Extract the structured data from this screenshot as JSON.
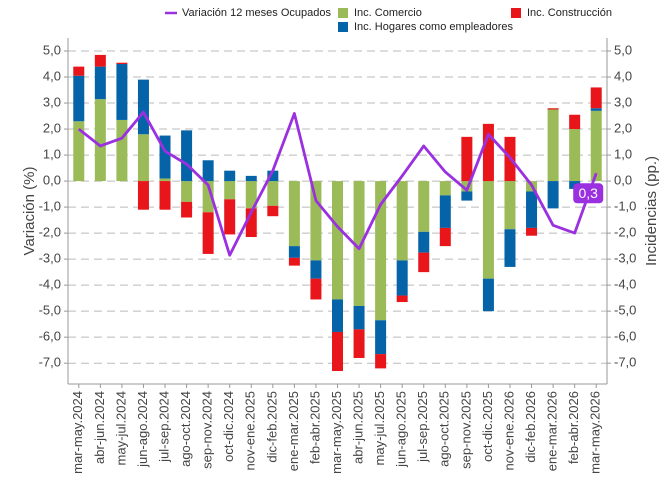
{
  "chart_data": {
    "type": "stacked-bar-line",
    "ylabel": "Variación (%)",
    "y2label": "Incidencias (pp.)",
    "categories": [
      "mar-may.2024",
      "abr-jun.2024",
      "may-jul.2024",
      "jun-ago.2024",
      "jul-sep.2024",
      "ago-oct.2024",
      "sep-nov.2024",
      "oct-dic.2024",
      "nov-ene.2025",
      "dic-feb.2025",
      "ene-mar.2025",
      "feb-abr.2025",
      "mar-may.2025",
      "abr-jun.2025",
      "may-jul.2025",
      "jun-ago.2025",
      "jul-sep.2025",
      "ago-oct.2025",
      "sep-nov.2025",
      "oct-dic.2025",
      "nov-ene.2026",
      "dic-feb.2026",
      "ene-mar.2026",
      "feb-abr.2026",
      "mar-may.2026"
    ],
    "series": [
      {
        "name": "Variación 12 meses Ocupados",
        "kind": "line",
        "color": "#9b30e0",
        "values": [
          2.0,
          1.35,
          1.65,
          2.65,
          1.15,
          0.65,
          -0.15,
          -2.85,
          -1.2,
          0.4,
          2.6,
          -0.75,
          -1.75,
          -2.6,
          -0.9,
          0.2,
          1.35,
          0.35,
          -0.35,
          1.8,
          0.9,
          -0.15,
          -1.7,
          -2.0,
          0.3
        ],
        "value_labels": [
          null,
          null,
          null,
          null,
          null,
          null,
          null,
          null,
          null,
          null,
          null,
          null,
          null,
          null,
          null,
          null,
          null,
          null,
          null,
          null,
          null,
          null,
          null,
          null,
          "0,3"
        ]
      },
      {
        "name": "Inc. Comercio",
        "kind": "bar",
        "axis": "y2",
        "color": "#9bbb59",
        "values": [
          2.3,
          3.15,
          2.35,
          1.8,
          0.1,
          -0.8,
          -1.2,
          -0.7,
          -1.05,
          -0.95,
          -2.5,
          -3.05,
          -4.55,
          -4.8,
          -5.35,
          -3.05,
          -1.95,
          -0.55,
          -0.4,
          -3.75,
          -1.85,
          -0.4,
          2.75,
          2.0,
          2.7
        ]
      },
      {
        "name": "Inc. Hogares como empleadores",
        "kind": "bar",
        "axis": "y2",
        "color": "#0563a8",
        "values": [
          1.75,
          1.25,
          2.15,
          2.1,
          1.65,
          1.95,
          0.8,
          0.4,
          0.2,
          0.4,
          -0.45,
          -0.7,
          -1.25,
          -0.9,
          -1.3,
          -1.35,
          -0.8,
          -1.25,
          -0.35,
          -1.25,
          -1.45,
          -1.4,
          -1.05,
          -0.3,
          0.1
        ]
      },
      {
        "name": "Inc. Construcción",
        "kind": "bar",
        "axis": "y2",
        "color": "#e8161b",
        "values": [
          0.35,
          0.45,
          0.05,
          -1.1,
          -1.1,
          -0.6,
          -1.6,
          -1.35,
          -1.1,
          -0.4,
          -0.3,
          -0.8,
          -1.5,
          -1.1,
          -0.55,
          -0.25,
          -0.75,
          -0.7,
          1.7,
          2.2,
          1.7,
          -0.3,
          0.05,
          0.55,
          0.8
        ]
      }
    ],
    "ylim": [
      -7.8,
      5.5
    ],
    "yticks": [
      {
        "value": 5,
        "label": "5,0"
      },
      {
        "value": 4,
        "label": "4,0"
      },
      {
        "value": 3,
        "label": "3,0"
      },
      {
        "value": 2,
        "label": "2,0"
      },
      {
        "value": 1,
        "label": "1,0"
      },
      {
        "value": 0,
        "label": "0,0"
      },
      {
        "value": -1,
        "label": "-1,0"
      },
      {
        "value": -2,
        "label": "-2,0"
      },
      {
        "value": -3,
        "label": "-3,0"
      },
      {
        "value": -4,
        "label": "-4,0"
      },
      {
        "value": -5,
        "label": "-5,0"
      },
      {
        "value": -6,
        "label": "-6,0"
      },
      {
        "value": -7,
        "label": "-7,0"
      }
    ],
    "y2lim": [
      -7.8,
      5.5
    ],
    "y2ticks": [
      {
        "value": 5,
        "label": "5,0"
      },
      {
        "value": 4,
        "label": "4,0"
      },
      {
        "value": 3,
        "label": "3,0"
      },
      {
        "value": 2,
        "label": "2,0"
      },
      {
        "value": 1,
        "label": "1,0"
      },
      {
        "value": 0,
        "label": "0,0"
      },
      {
        "value": -1,
        "label": "-1,0"
      },
      {
        "value": -2,
        "label": "-2,0"
      },
      {
        "value": -3,
        "label": "-3,0"
      },
      {
        "value": -4,
        "label": "-4,0"
      },
      {
        "value": -5,
        "label": "-5,0"
      },
      {
        "value": -6,
        "label": "-6,0"
      },
      {
        "value": -7,
        "label": "-7,0"
      }
    ],
    "grid": true,
    "legend": "top"
  }
}
